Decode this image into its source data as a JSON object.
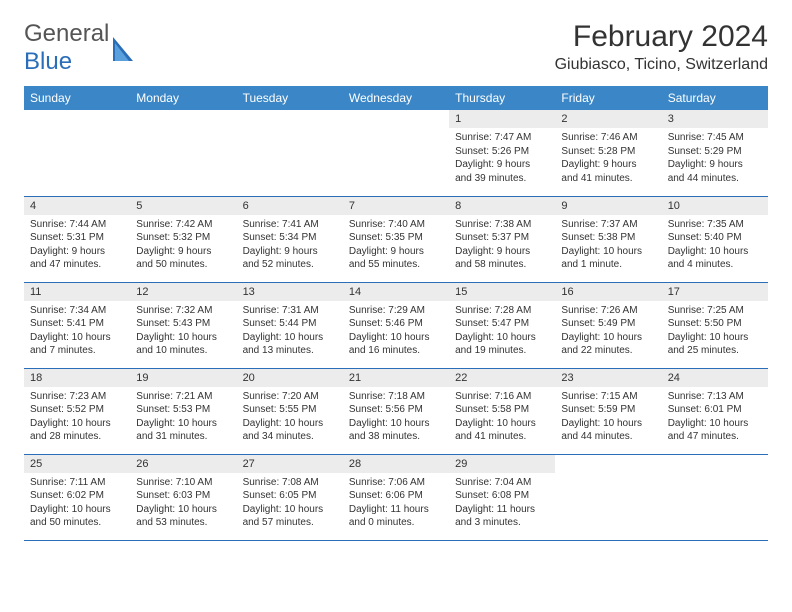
{
  "logo": {
    "line1": "General",
    "line2": "Blue"
  },
  "title": "February 2024",
  "location": "Giubiasco, Ticino, Switzerland",
  "style": {
    "header_bg": "#3b86c6",
    "header_fg": "#ffffff",
    "daynum_bg": "#ececec",
    "row_border": "#2a6db8",
    "text_color": "#333333",
    "month_fontsize": 30,
    "location_fontsize": 16,
    "dayhead_fontsize": 12,
    "daynum_fontsize": 11,
    "body_fontsize": 10
  },
  "weekdays": [
    "Sunday",
    "Monday",
    "Tuesday",
    "Wednesday",
    "Thursday",
    "Friday",
    "Saturday"
  ],
  "weeks": [
    [
      null,
      null,
      null,
      null,
      {
        "n": "1",
        "sr": "Sunrise: 7:47 AM",
        "ss": "Sunset: 5:26 PM",
        "d1": "Daylight: 9 hours",
        "d2": "and 39 minutes."
      },
      {
        "n": "2",
        "sr": "Sunrise: 7:46 AM",
        "ss": "Sunset: 5:28 PM",
        "d1": "Daylight: 9 hours",
        "d2": "and 41 minutes."
      },
      {
        "n": "3",
        "sr": "Sunrise: 7:45 AM",
        "ss": "Sunset: 5:29 PM",
        "d1": "Daylight: 9 hours",
        "d2": "and 44 minutes."
      }
    ],
    [
      {
        "n": "4",
        "sr": "Sunrise: 7:44 AM",
        "ss": "Sunset: 5:31 PM",
        "d1": "Daylight: 9 hours",
        "d2": "and 47 minutes."
      },
      {
        "n": "5",
        "sr": "Sunrise: 7:42 AM",
        "ss": "Sunset: 5:32 PM",
        "d1": "Daylight: 9 hours",
        "d2": "and 50 minutes."
      },
      {
        "n": "6",
        "sr": "Sunrise: 7:41 AM",
        "ss": "Sunset: 5:34 PM",
        "d1": "Daylight: 9 hours",
        "d2": "and 52 minutes."
      },
      {
        "n": "7",
        "sr": "Sunrise: 7:40 AM",
        "ss": "Sunset: 5:35 PM",
        "d1": "Daylight: 9 hours",
        "d2": "and 55 minutes."
      },
      {
        "n": "8",
        "sr": "Sunrise: 7:38 AM",
        "ss": "Sunset: 5:37 PM",
        "d1": "Daylight: 9 hours",
        "d2": "and 58 minutes."
      },
      {
        "n": "9",
        "sr": "Sunrise: 7:37 AM",
        "ss": "Sunset: 5:38 PM",
        "d1": "Daylight: 10 hours",
        "d2": "and 1 minute."
      },
      {
        "n": "10",
        "sr": "Sunrise: 7:35 AM",
        "ss": "Sunset: 5:40 PM",
        "d1": "Daylight: 10 hours",
        "d2": "and 4 minutes."
      }
    ],
    [
      {
        "n": "11",
        "sr": "Sunrise: 7:34 AM",
        "ss": "Sunset: 5:41 PM",
        "d1": "Daylight: 10 hours",
        "d2": "and 7 minutes."
      },
      {
        "n": "12",
        "sr": "Sunrise: 7:32 AM",
        "ss": "Sunset: 5:43 PM",
        "d1": "Daylight: 10 hours",
        "d2": "and 10 minutes."
      },
      {
        "n": "13",
        "sr": "Sunrise: 7:31 AM",
        "ss": "Sunset: 5:44 PM",
        "d1": "Daylight: 10 hours",
        "d2": "and 13 minutes."
      },
      {
        "n": "14",
        "sr": "Sunrise: 7:29 AM",
        "ss": "Sunset: 5:46 PM",
        "d1": "Daylight: 10 hours",
        "d2": "and 16 minutes."
      },
      {
        "n": "15",
        "sr": "Sunrise: 7:28 AM",
        "ss": "Sunset: 5:47 PM",
        "d1": "Daylight: 10 hours",
        "d2": "and 19 minutes."
      },
      {
        "n": "16",
        "sr": "Sunrise: 7:26 AM",
        "ss": "Sunset: 5:49 PM",
        "d1": "Daylight: 10 hours",
        "d2": "and 22 minutes."
      },
      {
        "n": "17",
        "sr": "Sunrise: 7:25 AM",
        "ss": "Sunset: 5:50 PM",
        "d1": "Daylight: 10 hours",
        "d2": "and 25 minutes."
      }
    ],
    [
      {
        "n": "18",
        "sr": "Sunrise: 7:23 AM",
        "ss": "Sunset: 5:52 PM",
        "d1": "Daylight: 10 hours",
        "d2": "and 28 minutes."
      },
      {
        "n": "19",
        "sr": "Sunrise: 7:21 AM",
        "ss": "Sunset: 5:53 PM",
        "d1": "Daylight: 10 hours",
        "d2": "and 31 minutes."
      },
      {
        "n": "20",
        "sr": "Sunrise: 7:20 AM",
        "ss": "Sunset: 5:55 PM",
        "d1": "Daylight: 10 hours",
        "d2": "and 34 minutes."
      },
      {
        "n": "21",
        "sr": "Sunrise: 7:18 AM",
        "ss": "Sunset: 5:56 PM",
        "d1": "Daylight: 10 hours",
        "d2": "and 38 minutes."
      },
      {
        "n": "22",
        "sr": "Sunrise: 7:16 AM",
        "ss": "Sunset: 5:58 PM",
        "d1": "Daylight: 10 hours",
        "d2": "and 41 minutes."
      },
      {
        "n": "23",
        "sr": "Sunrise: 7:15 AM",
        "ss": "Sunset: 5:59 PM",
        "d1": "Daylight: 10 hours",
        "d2": "and 44 minutes."
      },
      {
        "n": "24",
        "sr": "Sunrise: 7:13 AM",
        "ss": "Sunset: 6:01 PM",
        "d1": "Daylight: 10 hours",
        "d2": "and 47 minutes."
      }
    ],
    [
      {
        "n": "25",
        "sr": "Sunrise: 7:11 AM",
        "ss": "Sunset: 6:02 PM",
        "d1": "Daylight: 10 hours",
        "d2": "and 50 minutes."
      },
      {
        "n": "26",
        "sr": "Sunrise: 7:10 AM",
        "ss": "Sunset: 6:03 PM",
        "d1": "Daylight: 10 hours",
        "d2": "and 53 minutes."
      },
      {
        "n": "27",
        "sr": "Sunrise: 7:08 AM",
        "ss": "Sunset: 6:05 PM",
        "d1": "Daylight: 10 hours",
        "d2": "and 57 minutes."
      },
      {
        "n": "28",
        "sr": "Sunrise: 7:06 AM",
        "ss": "Sunset: 6:06 PM",
        "d1": "Daylight: 11 hours",
        "d2": "and 0 minutes."
      },
      {
        "n": "29",
        "sr": "Sunrise: 7:04 AM",
        "ss": "Sunset: 6:08 PM",
        "d1": "Daylight: 11 hours",
        "d2": "and 3 minutes."
      },
      null,
      null
    ]
  ]
}
